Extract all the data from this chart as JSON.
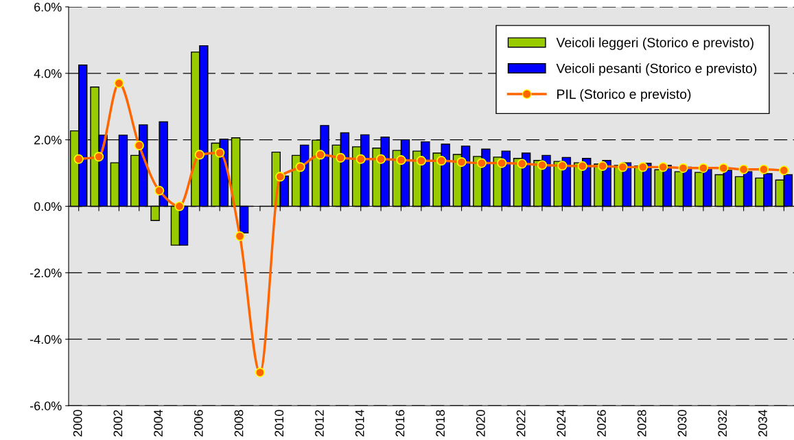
{
  "chart_data": {
    "type": "bar",
    "categories": [
      "2000",
      null,
      "2002",
      null,
      "2004",
      null,
      "2006",
      null,
      "2008",
      null,
      "2010",
      null,
      "2012",
      null,
      "2014",
      null,
      "2016",
      null,
      "2018",
      null,
      "2020",
      null,
      "2022",
      null,
      "2024",
      null,
      "2026",
      null,
      "2028",
      null,
      "2030",
      null,
      "2032",
      null,
      "2034",
      null
    ],
    "series": [
      {
        "name": "Veicoli leggeri (Storico e previsto)",
        "color": "#99cc00",
        "values": [
          2.27,
          3.59,
          1.31,
          1.53,
          -0.43,
          -1.17,
          4.64,
          1.9,
          2.06,
          null,
          1.63,
          1.53,
          1.99,
          1.84,
          1.79,
          1.75,
          1.68,
          1.66,
          1.6,
          1.56,
          1.5,
          1.48,
          1.44,
          1.38,
          1.35,
          1.31,
          1.27,
          1.23,
          1.21,
          1.1,
          1.04,
          1.02,
          0.95,
          0.89,
          0.85,
          0.79
        ]
      },
      {
        "name": "Veicoli pesanti (Storico e previsto)",
        "color": "#0000ff",
        "values": [
          4.25,
          2.14,
          2.14,
          2.45,
          2.54,
          -1.17,
          4.83,
          2.02,
          -0.8,
          null,
          0.91,
          1.84,
          2.43,
          2.21,
          2.15,
          2.08,
          2.0,
          1.94,
          1.87,
          1.81,
          1.72,
          1.66,
          1.6,
          1.53,
          1.47,
          1.44,
          1.38,
          1.31,
          1.29,
          1.23,
          1.18,
          1.15,
          1.08,
          1.04,
          0.98,
          0.95
        ]
      },
      {
        "name": "PIL (Storico e previsto)",
        "type": "line",
        "color": "#ff6600",
        "marker": "circle",
        "values": [
          1.42,
          1.49,
          3.7,
          1.83,
          0.47,
          0.0,
          1.55,
          1.61,
          -0.9,
          -5.0,
          0.89,
          1.18,
          1.55,
          1.46,
          1.42,
          1.42,
          1.39,
          1.37,
          1.37,
          1.33,
          1.3,
          1.3,
          1.28,
          1.24,
          1.22,
          1.21,
          1.21,
          1.18,
          1.18,
          1.18,
          1.15,
          1.15,
          1.15,
          1.11,
          1.11,
          1.08
        ]
      }
    ],
    "ylim": [
      -6,
      6
    ],
    "yticks": [
      {
        "value": -6,
        "label": "-6.0%"
      },
      {
        "value": -4,
        "label": "-4.0%"
      },
      {
        "value": -2,
        "label": "-2.0%"
      },
      {
        "value": 0,
        "label": "0.0%"
      },
      {
        "value": 2,
        "label": "2.0%"
      },
      {
        "value": 4,
        "label": "4.0%"
      },
      {
        "value": 6,
        "label": "6.0%"
      }
    ],
    "grid": "y",
    "legend": "top right"
  }
}
